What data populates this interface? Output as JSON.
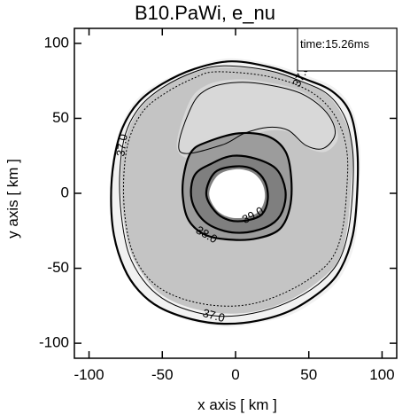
{
  "chart_data": {
    "type": "contour",
    "title": "B10.PaWi, e_nu",
    "xlabel": "x axis [ km ]",
    "ylabel": "y axis [ km ]",
    "xlim": [
      -110,
      110
    ],
    "ylim": [
      -110,
      110
    ],
    "xticks": [
      -100,
      -50,
      0,
      50,
      100
    ],
    "yticks": [
      -100,
      -50,
      0,
      50,
      100
    ],
    "time_label": "time:15.26ms",
    "contour_labels": [
      {
        "text": "37.0",
        "x": 45,
        "y": 78,
        "angle": -62
      },
      {
        "text": "37.0",
        "x": -77,
        "y": 32,
        "angle": -82
      },
      {
        "text": "37.0",
        "x": -15,
        "y": -82,
        "angle": 15
      },
      {
        "text": "38.0",
        "x": -20,
        "y": -28,
        "angle": 30
      },
      {
        "text": "39.0",
        "x": 12,
        "y": -15,
        "angle": -28
      }
    ],
    "regions": [
      {
        "name": "outer-envelope",
        "fill": "#f2f2f2",
        "points": [
          [
            -5,
            90
          ],
          [
            25,
            86
          ],
          [
            50,
            78
          ],
          [
            68,
            70
          ],
          [
            80,
            55
          ],
          [
            85,
            30
          ],
          [
            84,
            0
          ],
          [
            82,
            -30
          ],
          [
            74,
            -52
          ],
          [
            62,
            -66
          ],
          [
            40,
            -80
          ],
          [
            18,
            -86
          ],
          [
            -5,
            -89
          ],
          [
            -28,
            -86
          ],
          [
            -50,
            -78
          ],
          [
            -65,
            -67
          ],
          [
            -75,
            -52
          ],
          [
            -82,
            -32
          ],
          [
            -85,
            -5
          ],
          [
            -84,
            22
          ],
          [
            -78,
            45
          ],
          [
            -68,
            62
          ],
          [
            -52,
            74
          ],
          [
            -28,
            84
          ]
        ]
      },
      {
        "name": "middle-shell",
        "fill": "#c4c4c4",
        "points": [
          [
            -10,
            84
          ],
          [
            20,
            82
          ],
          [
            42,
            76
          ],
          [
            62,
            66
          ],
          [
            74,
            50
          ],
          [
            80,
            30
          ],
          [
            79,
            5
          ],
          [
            76,
            -25
          ],
          [
            70,
            -45
          ],
          [
            55,
            -60
          ],
          [
            35,
            -72
          ],
          [
            12,
            -79
          ],
          [
            -10,
            -80
          ],
          [
            -32,
            -76
          ],
          [
            -50,
            -68
          ],
          [
            -62,
            -56
          ],
          [
            -72,
            -38
          ],
          [
            -77,
            -12
          ],
          [
            -78,
            15
          ],
          [
            -74,
            40
          ],
          [
            -64,
            58
          ],
          [
            -48,
            71
          ],
          [
            -30,
            80
          ]
        ]
      },
      {
        "name": "inner-ring",
        "fill": "#9c9c9c",
        "points": [
          [
            -20,
            34
          ],
          [
            2,
            40
          ],
          [
            22,
            38
          ],
          [
            34,
            28
          ],
          [
            38,
            10
          ],
          [
            37,
            -10
          ],
          [
            30,
            -24
          ],
          [
            15,
            -30
          ],
          [
            -2,
            -31
          ],
          [
            -20,
            -28
          ],
          [
            -32,
            -18
          ],
          [
            -36,
            -2
          ],
          [
            -35,
            14
          ],
          [
            -30,
            28
          ]
        ]
      },
      {
        "name": "core-ring",
        "fill": "#7f7f7f",
        "points": [
          [
            -16,
            20
          ],
          [
            -2,
            25
          ],
          [
            14,
            23
          ],
          [
            28,
            16
          ],
          [
            34,
            2
          ],
          [
            32,
            -12
          ],
          [
            24,
            -21
          ],
          [
            8,
            -26
          ],
          [
            -8,
            -25
          ],
          [
            -22,
            -18
          ],
          [
            -30,
            -4
          ],
          [
            -28,
            12
          ]
        ]
      }
    ],
    "lighter_patch": {
      "name": "light-pocket",
      "fill": "#d8d8d8",
      "points": [
        [
          -40,
          30
        ],
        [
          -32,
          60
        ],
        [
          -20,
          72
        ],
        [
          0,
          76
        ],
        [
          22,
          74
        ],
        [
          45,
          68
        ],
        [
          62,
          55
        ],
        [
          70,
          38
        ],
        [
          62,
          28
        ],
        [
          50,
          30
        ],
        [
          38,
          40
        ],
        [
          25,
          42
        ],
        [
          8,
          38
        ],
        [
          -10,
          30
        ],
        [
          -25,
          22
        ]
      ]
    },
    "lines": [
      {
        "name": "contour-37-outer",
        "weight": "thick",
        "dash": "none",
        "points": [
          [
            -3,
            88
          ],
          [
            24,
            84
          ],
          [
            48,
            76
          ],
          [
            66,
            68
          ],
          [
            78,
            54
          ],
          [
            83,
            30
          ],
          [
            83,
            0
          ],
          [
            80,
            -28
          ],
          [
            72,
            -50
          ],
          [
            60,
            -64
          ],
          [
            38,
            -78
          ],
          [
            15,
            -85
          ],
          [
            -8,
            -87
          ],
          [
            -30,
            -84
          ],
          [
            -52,
            -76
          ],
          [
            -66,
            -65
          ],
          [
            -76,
            -50
          ],
          [
            -83,
            -28
          ],
          [
            -85,
            -3
          ],
          [
            -83,
            22
          ],
          [
            -77,
            44
          ],
          [
            -66,
            61
          ],
          [
            -50,
            73
          ],
          [
            -28,
            83
          ]
        ]
      },
      {
        "name": "contour-37-inner",
        "weight": "thin",
        "dash": "none",
        "points": [
          [
            -8,
            85
          ],
          [
            22,
            82
          ],
          [
            44,
            75
          ],
          [
            63,
            66
          ],
          [
            75,
            50
          ],
          [
            80,
            28
          ],
          [
            80,
            3
          ],
          [
            77,
            -25
          ],
          [
            70,
            -46
          ],
          [
            56,
            -61
          ],
          [
            35,
            -73
          ],
          [
            12,
            -80
          ],
          [
            -10,
            -82
          ],
          [
            -32,
            -78
          ],
          [
            -50,
            -70
          ],
          [
            -63,
            -58
          ],
          [
            -73,
            -40
          ],
          [
            -78,
            -14
          ],
          [
            -79,
            14
          ],
          [
            -75,
            40
          ],
          [
            -65,
            58
          ],
          [
            -49,
            71
          ],
          [
            -28,
            81
          ]
        ]
      },
      {
        "name": "contour-dotted",
        "weight": "thin",
        "dash": "2,2",
        "points": [
          [
            -14,
            81
          ],
          [
            16,
            79
          ],
          [
            40,
            73
          ],
          [
            58,
            63
          ],
          [
            70,
            48
          ],
          [
            76,
            28
          ],
          [
            76,
            4
          ],
          [
            73,
            -24
          ],
          [
            66,
            -43
          ],
          [
            52,
            -56
          ],
          [
            32,
            -67
          ],
          [
            10,
            -74
          ],
          [
            -12,
            -75
          ],
          [
            -34,
            -71
          ],
          [
            -52,
            -63
          ],
          [
            -64,
            -51
          ],
          [
            -72,
            -34
          ],
          [
            -76,
            -10
          ],
          [
            -76,
            16
          ],
          [
            -72,
            38
          ],
          [
            -62,
            56
          ],
          [
            -46,
            68
          ],
          [
            -28,
            77
          ]
        ]
      },
      {
        "name": "contour-upper-arc",
        "weight": "thin",
        "dash": "none",
        "points": [
          [
            -38,
            28
          ],
          [
            -30,
            58
          ],
          [
            -18,
            70
          ],
          [
            2,
            74
          ],
          [
            24,
            72
          ],
          [
            46,
            66
          ],
          [
            62,
            54
          ],
          [
            68,
            40
          ],
          [
            60,
            30
          ],
          [
            48,
            32
          ],
          [
            36,
            42
          ],
          [
            22,
            44
          ],
          [
            6,
            40
          ],
          [
            -10,
            32
          ]
        ]
      },
      {
        "name": "contour-38",
        "weight": "thick",
        "dash": "none",
        "points": [
          [
            -20,
            34
          ],
          [
            2,
            40
          ],
          [
            22,
            38
          ],
          [
            34,
            28
          ],
          [
            38,
            10
          ],
          [
            37,
            -10
          ],
          [
            30,
            -24
          ],
          [
            15,
            -30
          ],
          [
            -2,
            -31
          ],
          [
            -20,
            -28
          ],
          [
            -32,
            -18
          ],
          [
            -36,
            -2
          ],
          [
            -35,
            14
          ],
          [
            -30,
            28
          ]
        ]
      },
      {
        "name": "contour-39",
        "weight": "thick",
        "dash": "none",
        "points": [
          [
            -16,
            20
          ],
          [
            -2,
            25
          ],
          [
            14,
            23
          ],
          [
            28,
            16
          ],
          [
            34,
            2
          ],
          [
            32,
            -12
          ],
          [
            24,
            -21
          ],
          [
            8,
            -26
          ],
          [
            -8,
            -25
          ],
          [
            -22,
            -18
          ],
          [
            -30,
            -4
          ],
          [
            -28,
            12
          ]
        ]
      },
      {
        "name": "contour-39-hole",
        "weight": "thick",
        "dash": "none",
        "points": [
          [
            -14,
            14
          ],
          [
            0,
            18
          ],
          [
            12,
            16
          ],
          [
            20,
            8
          ],
          [
            22,
            -4
          ],
          [
            18,
            -14
          ],
          [
            8,
            -18
          ],
          [
            -4,
            -18
          ],
          [
            -14,
            -12
          ],
          [
            -20,
            0
          ]
        ]
      }
    ],
    "hole": {
      "name": "central-hole",
      "fill": "#ffffff",
      "points": [
        [
          -12,
          12
        ],
        [
          0,
          16
        ],
        [
          11,
          14
        ],
        [
          18,
          7
        ],
        [
          20,
          -3
        ],
        [
          16,
          -12
        ],
        [
          7,
          -16
        ],
        [
          -4,
          -16
        ],
        [
          -13,
          -11
        ],
        [
          -18,
          0
        ]
      ]
    },
    "grid": false
  }
}
